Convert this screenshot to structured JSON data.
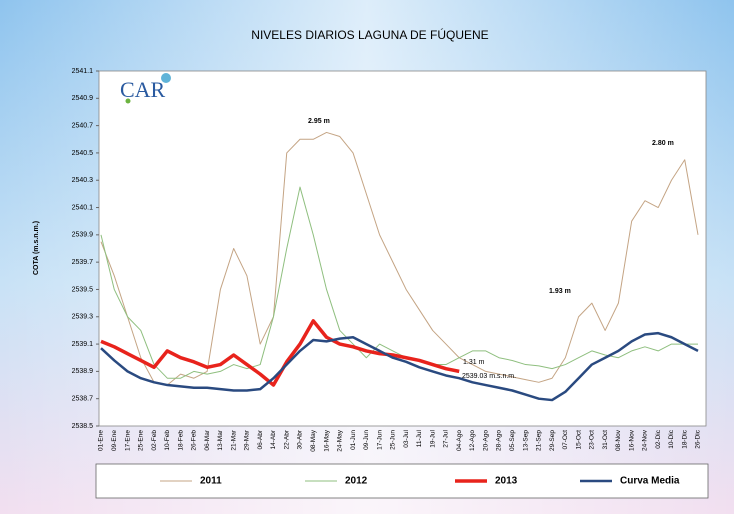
{
  "chart_data": {
    "type": "line",
    "title": "NIVELES DIARIOS LAGUNA DE FÚQUENE",
    "y_label": "COTA (m.s.n.m.)",
    "logo": "CAR",
    "categories": [
      "01-Ene",
      "09-Ene",
      "17-Ene",
      "25-Ene",
      "02-Feb",
      "10-Feb",
      "18-Feb",
      "26-Feb",
      "06-Mar",
      "13-Mar",
      "21-Mar",
      "29-Mar",
      "06-Abr",
      "14-Abr",
      "22-Abr",
      "30-Abr",
      "08-May",
      "16-May",
      "24-May",
      "01-Jun",
      "09-Jun",
      "17-Jun",
      "25-Jun",
      "03-Jul",
      "11-Jul",
      "19-Jul",
      "27-Jul",
      "04-Ago",
      "12-Ago",
      "20-Ago",
      "28-Ago",
      "05-Sep",
      "13-Sep",
      "21-Sep",
      "29-Sep",
      "07-Oct",
      "15-Oct",
      "23-Oct",
      "31-Oct",
      "08-Nov",
      "16-Nov",
      "24-Nov",
      "02-Dic",
      "10-Dic",
      "18-Dic",
      "26-Dic"
    ],
    "series": [
      {
        "name": "2011",
        "color": "#c4a484",
        "width": 1,
        "values": [
          2539.85,
          2539.6,
          2539.3,
          2539.0,
          2538.82,
          2538.8,
          2538.88,
          2538.85,
          2538.9,
          2539.5,
          2539.8,
          2539.6,
          2539.1,
          2539.3,
          2540.5,
          2540.6,
          2540.6,
          2540.65,
          2540.62,
          2540.5,
          2540.2,
          2539.9,
          2539.7,
          2539.5,
          2539.35,
          2539.2,
          2539.1,
          2539.0,
          2538.95,
          2538.9,
          2538.88,
          2538.86,
          2538.84,
          2538.82,
          2538.85,
          2539.0,
          2539.3,
          2539.4,
          2539.2,
          2539.4,
          2540.0,
          2540.15,
          2540.1,
          2540.3,
          2540.45,
          2539.9
        ]
      },
      {
        "name": "2012",
        "color": "#8fbf7f",
        "width": 1,
        "values": [
          2539.9,
          2539.5,
          2539.3,
          2539.2,
          2538.95,
          2538.85,
          2538.85,
          2538.9,
          2538.88,
          2538.9,
          2538.95,
          2538.92,
          2538.95,
          2539.3,
          2539.8,
          2540.25,
          2539.9,
          2539.5,
          2539.2,
          2539.1,
          2539.0,
          2539.1,
          2539.05,
          2539.0,
          2538.98,
          2538.95,
          2538.95,
          2539.0,
          2539.05,
          2539.05,
          2539.0,
          2538.98,
          2538.95,
          2538.94,
          2538.92,
          2538.95,
          2539.0,
          2539.05,
          2539.02,
          2539.0,
          2539.05,
          2539.08,
          2539.05,
          2539.1,
          2539.1,
          2539.1
        ]
      },
      {
        "name": "2013",
        "color": "#e8231c",
        "width": 3.5,
        "values": [
          2539.12,
          2539.08,
          2539.03,
          2538.98,
          2538.93,
          2539.05,
          2539.0,
          2538.97,
          2538.93,
          2538.95,
          2539.02,
          2538.95,
          2538.88,
          2538.8,
          2538.97,
          2539.1,
          2539.27,
          2539.15,
          2539.1,
          2539.08,
          2539.05,
          2539.03,
          2539.02,
          2539.0,
          2538.98,
          2538.95,
          2538.92,
          2538.9,
          null,
          null,
          null,
          null,
          null,
          null,
          null,
          null,
          null,
          null,
          null,
          null,
          null,
          null,
          null,
          null,
          null,
          null
        ]
      },
      {
        "name": "Curva Media",
        "color": "#2a4a80",
        "width": 2.5,
        "values": [
          2539.07,
          2538.98,
          2538.9,
          2538.85,
          2538.82,
          2538.8,
          2538.79,
          2538.78,
          2538.78,
          2538.77,
          2538.76,
          2538.76,
          2538.77,
          2538.85,
          2538.95,
          2539.05,
          2539.13,
          2539.12,
          2539.14,
          2539.15,
          2539.1,
          2539.05,
          2539.0,
          2538.97,
          2538.93,
          2538.9,
          2538.87,
          2538.85,
          2538.82,
          2538.8,
          2538.78,
          2538.76,
          2538.73,
          2538.7,
          2538.69,
          2538.75,
          2538.85,
          2538.95,
          2539.0,
          2539.05,
          2539.12,
          2539.17,
          2539.18,
          2539.15,
          2539.1,
          2539.05
        ]
      }
    ],
    "annotations": [
      "2.95 m",
      "2.80 m",
      "1.93 m",
      "1.31 m",
      "2539.03 m.s.n.m."
    ],
    "ylim": [
      2538.5,
      2541.1
    ],
    "yticks": [
      2538.5,
      2538.7,
      2538.9,
      2539.1,
      2539.3,
      2539.5,
      2539.7,
      2539.9,
      2540.1,
      2540.3,
      2540.5,
      2540.7,
      2540.9,
      2541.1
    ],
    "grid": false
  }
}
